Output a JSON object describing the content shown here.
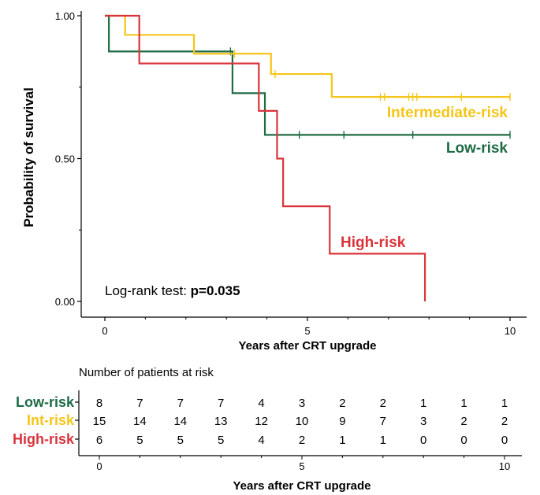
{
  "chart_data": {
    "type": "line",
    "subtype": "kaplan-meier",
    "xlabel": "Years after CRT upgrade",
    "ylabel": "Probability of survival",
    "xlim": [
      0,
      10
    ],
    "ylim": [
      0,
      1
    ],
    "x_ticks": [
      "0",
      "5",
      "10"
    ],
    "y_ticks": [
      "0.00",
      "0.50",
      "1.00"
    ],
    "annotation": {
      "prefix": "Log-rank test: ",
      "value": "p=0.035"
    },
    "series": [
      {
        "name": "Low-risk",
        "label": "Low-risk",
        "color": "#1e6b45",
        "steps": [
          [
            0,
            1.0
          ],
          [
            0.1,
            0.875
          ],
          [
            3.1,
            0.875
          ],
          [
            3.15,
            0.729
          ],
          [
            3.95,
            0.729
          ],
          [
            3.95,
            0.583
          ],
          [
            10,
            0.583
          ]
        ],
        "censor_times": [
          3.1,
          4.8,
          5.9,
          7.6,
          10.0
        ],
        "end": 10
      },
      {
        "name": "Intermediate-risk",
        "label": "Intermediate-risk",
        "color": "#f5c518",
        "steps": [
          [
            0,
            1.0
          ],
          [
            0.5,
            0.933
          ],
          [
            2.2,
            0.933
          ],
          [
            2.2,
            0.867
          ],
          [
            4.1,
            0.867
          ],
          [
            4.1,
            0.796
          ],
          [
            5.6,
            0.796
          ],
          [
            5.6,
            0.716
          ],
          [
            10,
            0.716
          ]
        ],
        "censor_times": [
          3.2,
          4.2,
          6.8,
          6.9,
          7.5,
          7.6,
          7.7,
          8.8,
          10.0
        ],
        "end": 10
      },
      {
        "name": "High-risk",
        "label": "High-risk",
        "color": "#d9343c",
        "steps": [
          [
            0,
            1.0
          ],
          [
            0.85,
            1.0
          ],
          [
            0.85,
            0.833
          ],
          [
            3.8,
            0.833
          ],
          [
            3.8,
            0.667
          ],
          [
            4.25,
            0.667
          ],
          [
            4.25,
            0.5
          ],
          [
            4.4,
            0.5
          ],
          [
            4.4,
            0.333
          ],
          [
            5.55,
            0.333
          ],
          [
            5.55,
            0.167
          ],
          [
            7.9,
            0.167
          ],
          [
            7.9,
            0.0
          ]
        ],
        "censor_times": [],
        "end": 7.9
      }
    ],
    "risk_table": {
      "title": "Number of patients at risk",
      "xlabel": "Years after CRT upgrade",
      "x_ticks": [
        "0",
        "5",
        "10"
      ],
      "rows": [
        {
          "label": "Low-risk",
          "color": "#1e6b45",
          "values": [
            "8",
            "7",
            "7",
            "7",
            "4",
            "3",
            "2",
            "2",
            "1",
            "1",
            "1"
          ]
        },
        {
          "label": "Int-risk",
          "color": "#f5c518",
          "values": [
            "15",
            "14",
            "14",
            "13",
            "12",
            "10",
            "9",
            "7",
            "3",
            "2",
            "2"
          ]
        },
        {
          "label": "High-risk",
          "color": "#d9343c",
          "values": [
            "6",
            "5",
            "5",
            "5",
            "4",
            "2",
            "1",
            "1",
            "0",
            "0",
            "0"
          ]
        }
      ]
    }
  }
}
